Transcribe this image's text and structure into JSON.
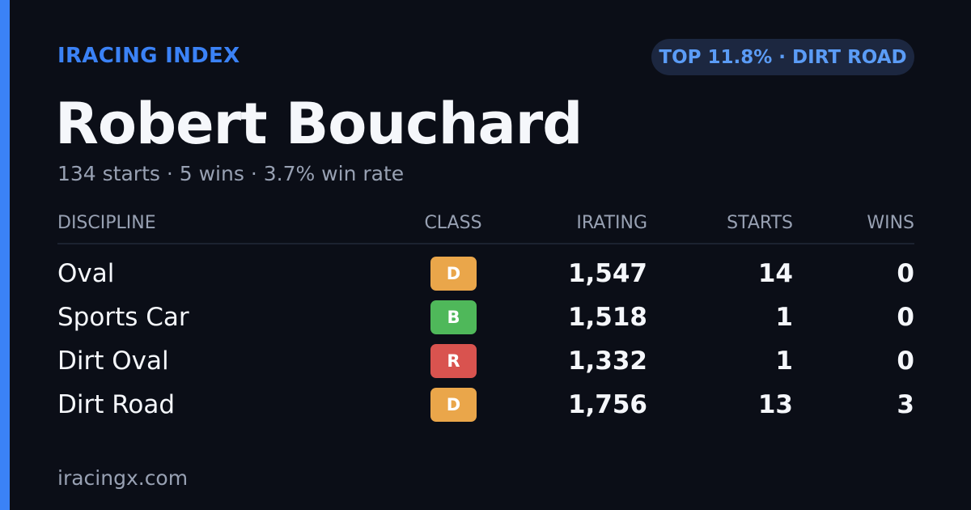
{
  "header": {
    "brand": "IRACING INDEX",
    "badge": "TOP 11.8% · DIRT ROAD",
    "name": "Robert Bouchard",
    "summary": "134 starts · 5 wins · 3.7% win rate"
  },
  "table": {
    "columns": [
      "DISCIPLINE",
      "CLASS",
      "IRATING",
      "STARTS",
      "WINS"
    ],
    "rows": [
      [
        "Oval",
        "D",
        "1,547",
        "14",
        "0"
      ],
      [
        "Sports Car",
        "B",
        "1,518",
        "1",
        "0"
      ],
      [
        "Dirt Oval",
        "R",
        "1,332",
        "1",
        "0"
      ],
      [
        "Dirt Road",
        "D",
        "1,756",
        "13",
        "3"
      ]
    ],
    "class_colors": {
      "D": "#eaa64a",
      "B": "#4fb85a",
      "R": "#d9534f"
    }
  },
  "footer": "iracingx.com"
}
